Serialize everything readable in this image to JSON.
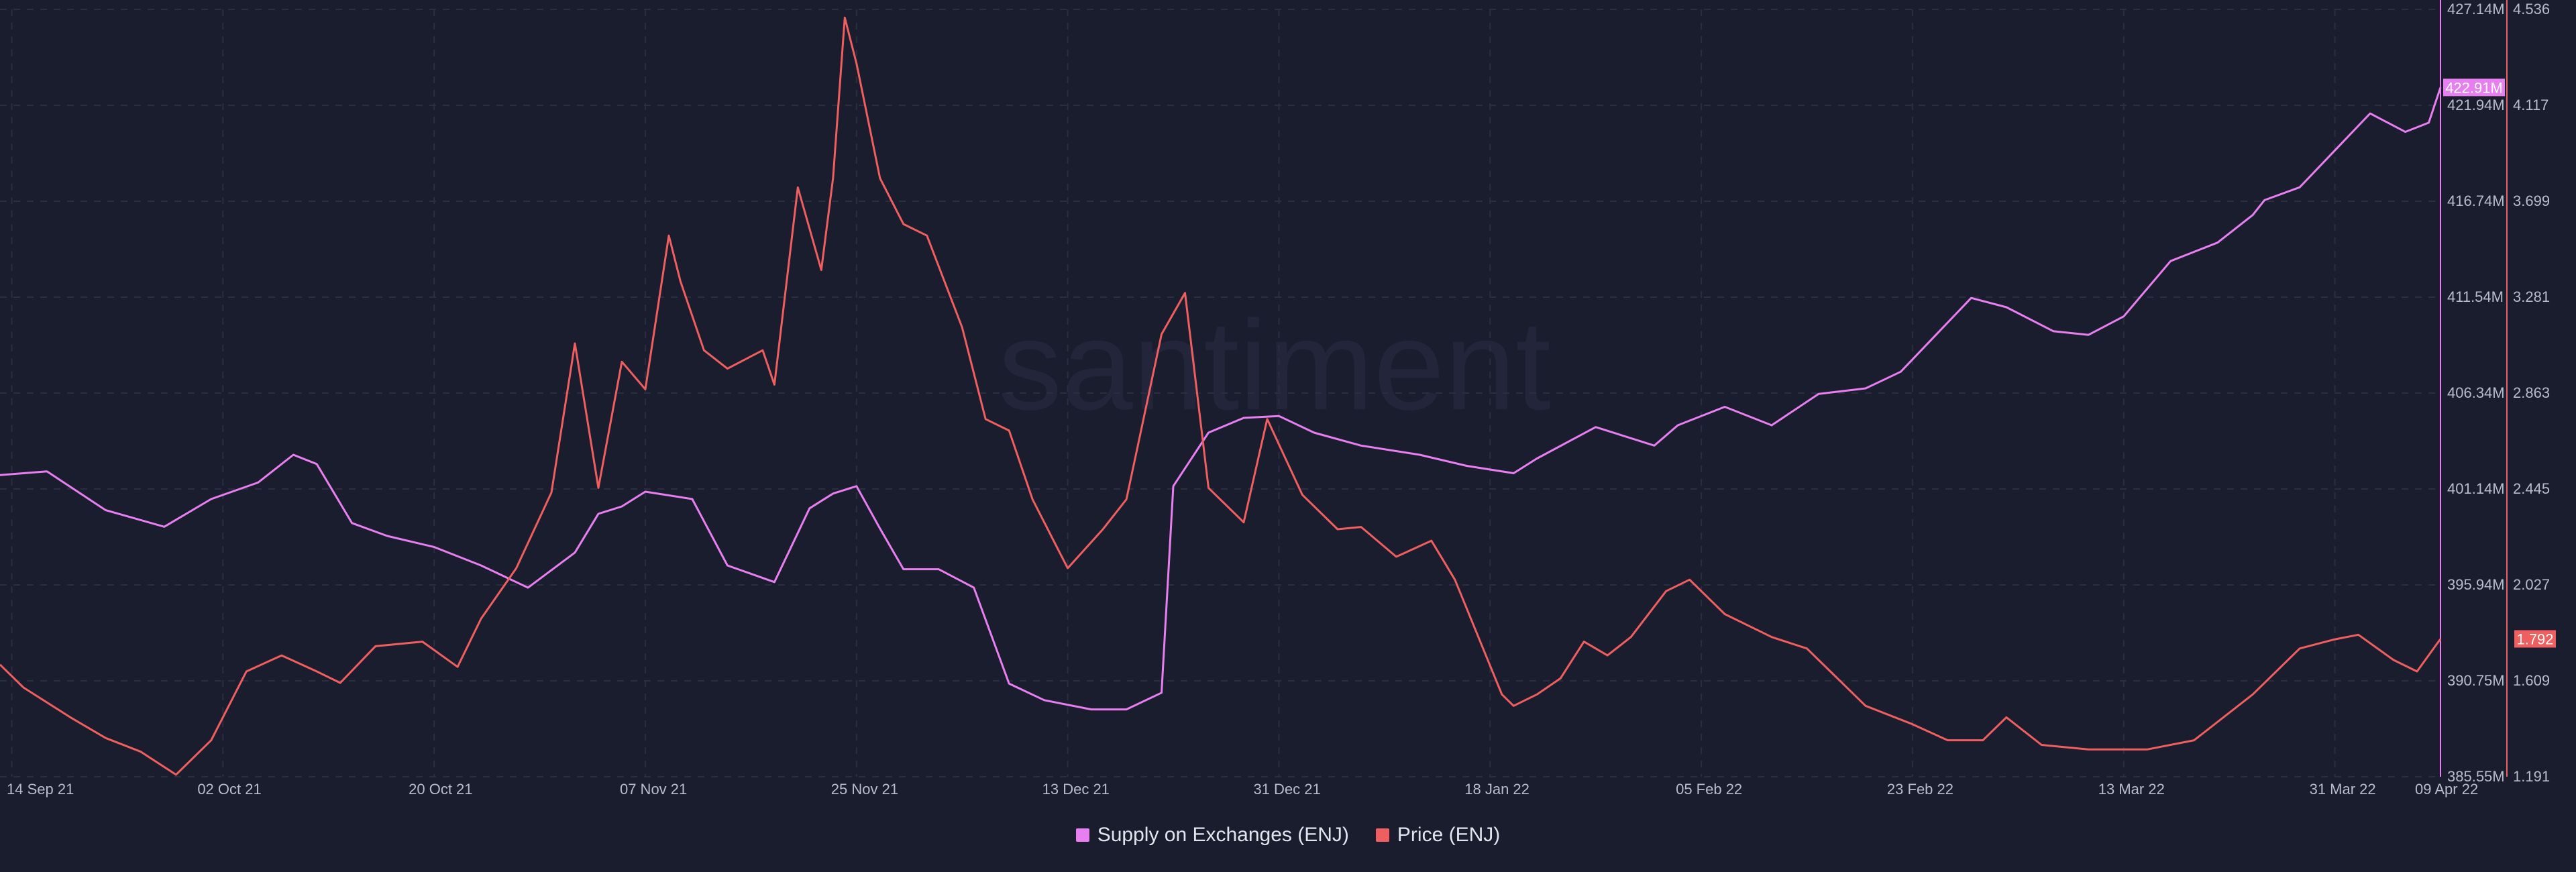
{
  "watermark": "santiment",
  "colors": {
    "background": "#1a1d2d",
    "grid": "#2a2e40",
    "supply": "#e87ff0",
    "price": "#ef5f5f"
  },
  "chart_data": {
    "type": "line",
    "x_ticks": [
      "14 Sep 21",
      "02 Oct 21",
      "20 Oct 21",
      "07 Nov 21",
      "25 Nov 21",
      "13 Dec 21",
      "31 Dec 21",
      "18 Jan 22",
      "05 Feb 22",
      "23 Feb 22",
      "13 Mar 22",
      "31 Mar 22",
      "09 Apr 22"
    ],
    "x_range": [
      "2021-09-13",
      "2022-04-09"
    ],
    "grid": true,
    "legend_position": "bottom-center",
    "axes": {
      "supply": {
        "ticks": [
          "427.14M",
          "421.94M",
          "416.74M",
          "411.54M",
          "406.34M",
          "401.14M",
          "395.94M",
          "390.75M",
          "385.55M"
        ],
        "min": 385.55,
        "max": 427.14,
        "unit": "M",
        "current": "422.91M"
      },
      "price": {
        "ticks": [
          "4.536",
          "4.117",
          "3.699",
          "3.281",
          "2.863",
          "2.445",
          "2.027",
          "1.609",
          "1.191"
        ],
        "min": 1.191,
        "max": 4.536,
        "current": "1.792"
      }
    },
    "series": [
      {
        "name": "Supply on Exchanges (ENJ)",
        "color": "#e87ff0",
        "axis": "supply",
        "x": [
          "2021-09-13",
          "2021-09-17",
          "2021-09-22",
          "2021-09-27",
          "2021-10-01",
          "2021-10-05",
          "2021-10-08",
          "2021-10-10",
          "2021-10-13",
          "2021-10-16",
          "2021-10-20",
          "2021-10-24",
          "2021-10-28",
          "2021-11-01",
          "2021-11-03",
          "2021-11-05",
          "2021-11-07",
          "2021-11-11",
          "2021-11-14",
          "2021-11-18",
          "2021-11-21",
          "2021-11-23",
          "2021-11-25",
          "2021-11-27",
          "2021-11-29",
          "2021-12-02",
          "2021-12-05",
          "2021-12-08",
          "2021-12-11",
          "2021-12-15",
          "2021-12-18",
          "2021-12-21",
          "2021-12-22",
          "2021-12-25",
          "2021-12-28",
          "2021-12-31",
          "2022-01-03",
          "2022-01-07",
          "2022-01-12",
          "2022-01-16",
          "2022-01-20",
          "2022-01-22",
          "2022-01-27",
          "2022-02-01",
          "2022-02-03",
          "2022-02-07",
          "2022-02-11",
          "2022-02-15",
          "2022-02-19",
          "2022-02-22",
          "2022-02-25",
          "2022-02-28",
          "2022-03-03",
          "2022-03-07",
          "2022-03-10",
          "2022-03-13",
          "2022-03-17",
          "2022-03-21",
          "2022-03-24",
          "2022-03-25",
          "2022-03-28",
          "2022-03-31",
          "2022-04-03",
          "2022-04-06",
          "2022-04-08",
          "2022-04-09"
        ],
        "values": [
          401.9,
          402.1,
          400.0,
          399.1,
          400.6,
          401.5,
          403.0,
          402.5,
          399.3,
          398.6,
          398.0,
          397.0,
          395.8,
          397.7,
          399.8,
          400.2,
          401.0,
          400.6,
          397.0,
          396.1,
          400.1,
          400.9,
          401.3,
          399.0,
          396.8,
          396.8,
          395.8,
          390.6,
          389.7,
          389.2,
          389.2,
          390.1,
          401.3,
          404.2,
          405.0,
          405.1,
          404.2,
          403.5,
          403.0,
          402.4,
          402.0,
          402.8,
          404.5,
          403.5,
          404.6,
          405.6,
          404.6,
          406.3,
          406.6,
          407.5,
          409.5,
          411.5,
          411.0,
          409.7,
          409.5,
          410.5,
          413.5,
          414.5,
          416.0,
          416.8,
          417.5,
          419.5,
          421.5,
          420.5,
          421.0,
          422.91
        ]
      },
      {
        "name": "Price (ENJ)",
        "color": "#ef5f5f",
        "axis": "price",
        "x": [
          "2021-09-13",
          "2021-09-15",
          "2021-09-19",
          "2021-09-22",
          "2021-09-25",
          "2021-09-28",
          "2021-10-01",
          "2021-10-04",
          "2021-10-07",
          "2021-10-10",
          "2021-10-12",
          "2021-10-15",
          "2021-10-19",
          "2021-10-22",
          "2021-10-24",
          "2021-10-27",
          "2021-10-30",
          "2021-11-01",
          "2021-11-03",
          "2021-11-05",
          "2021-11-07",
          "2021-11-09",
          "2021-11-10",
          "2021-11-12",
          "2021-11-14",
          "2021-11-17",
          "2021-11-18",
          "2021-11-20",
          "2021-11-22",
          "2021-11-23",
          "2021-11-24",
          "2021-11-25",
          "2021-11-27",
          "2021-11-29",
          "2021-12-01",
          "2021-12-04",
          "2021-12-06",
          "2021-12-08",
          "2021-12-10",
          "2021-12-12",
          "2021-12-13",
          "2021-12-16",
          "2021-12-18",
          "2021-12-21",
          "2021-12-23",
          "2021-12-25",
          "2021-12-28",
          "2021-12-30",
          "2022-01-02",
          "2022-01-05",
          "2022-01-07",
          "2022-01-10",
          "2022-01-13",
          "2022-01-15",
          "2022-01-17",
          "2022-01-19",
          "2022-01-20",
          "2022-01-22",
          "2022-01-24",
          "2022-01-26",
          "2022-01-28",
          "2022-01-30",
          "2022-02-02",
          "2022-02-04",
          "2022-02-07",
          "2022-02-11",
          "2022-02-14",
          "2022-02-16",
          "2022-02-19",
          "2022-02-23",
          "2022-02-26",
          "2022-03-01",
          "2022-03-03",
          "2022-03-06",
          "2022-03-10",
          "2022-03-15",
          "2022-03-19",
          "2022-03-24",
          "2022-03-28",
          "2022-03-31",
          "2022-04-02",
          "2022-04-05",
          "2022-04-07",
          "2022-04-09"
        ],
        "values": [
          1.68,
          1.58,
          1.45,
          1.36,
          1.3,
          1.2,
          1.35,
          1.65,
          1.72,
          1.65,
          1.6,
          1.76,
          1.78,
          1.67,
          1.88,
          2.1,
          2.43,
          3.08,
          2.45,
          3.0,
          2.88,
          3.55,
          3.35,
          3.05,
          2.97,
          3.05,
          2.9,
          3.76,
          3.4,
          3.8,
          4.5,
          4.3,
          3.8,
          3.6,
          3.55,
          3.15,
          2.75,
          2.7,
          2.4,
          2.2,
          2.1,
          2.27,
          2.4,
          3.12,
          3.3,
          2.45,
          2.3,
          2.75,
          2.42,
          2.27,
          2.28,
          2.15,
          2.22,
          2.05,
          1.8,
          1.55,
          1.5,
          1.55,
          1.62,
          1.78,
          1.72,
          1.8,
          2.0,
          2.05,
          1.9,
          1.8,
          1.75,
          1.65,
          1.5,
          1.42,
          1.35,
          1.35,
          1.45,
          1.33,
          1.31,
          1.31,
          1.35,
          1.55,
          1.75,
          1.79,
          1.81,
          1.7,
          1.65,
          1.792
        ]
      }
    ]
  }
}
